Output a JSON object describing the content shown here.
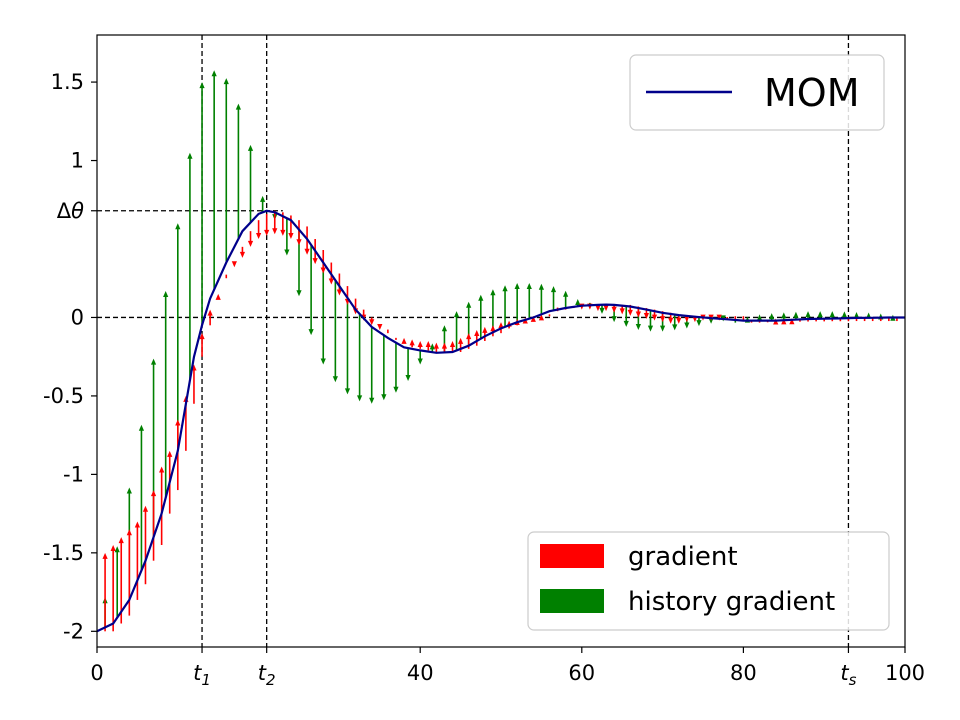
{
  "chart_data": {
    "type": "line",
    "title": "",
    "xlabel": "",
    "ylabel": "",
    "xlim": [
      0,
      100
    ],
    "ylim": [
      -2.1,
      1.8
    ],
    "x_ticks": [
      {
        "value": 0,
        "label": "0"
      },
      {
        "value": 13,
        "label": "t",
        "sub": "1"
      },
      {
        "value": 21,
        "label": "t",
        "sub": "2"
      },
      {
        "value": 40,
        "label": "40"
      },
      {
        "value": 60,
        "label": "60"
      },
      {
        "value": 80,
        "label": "80"
      },
      {
        "value": 93,
        "label": "t",
        "sub": "s"
      },
      {
        "value": 100,
        "label": "100"
      }
    ],
    "y_ticks": [
      {
        "value": -2,
        "label": "-2"
      },
      {
        "value": -1.5,
        "label": "-1.5"
      },
      {
        "value": -1,
        "label": "-1"
      },
      {
        "value": -0.5,
        "label": "-0.5"
      },
      {
        "value": 0,
        "label": "0"
      },
      {
        "value": 0.68,
        "label": "Δθ",
        "italic_part": "θ"
      },
      {
        "value": 1,
        "label": "1"
      },
      {
        "value": 1.5,
        "label": "1.5"
      }
    ],
    "reference_lines": {
      "vertical": [
        13,
        21,
        93
      ],
      "horizontal": [
        {
          "y": 0,
          "x_from": 0,
          "x_to": 100
        },
        {
          "y": 0.68,
          "x_from": 0,
          "x_to": 23
        }
      ]
    },
    "series": [
      {
        "name": "MOM",
        "color": "#00008b",
        "x": [
          0,
          2,
          4,
          6,
          8,
          10,
          12,
          13,
          14,
          16,
          18,
          20,
          21,
          22,
          24,
          26,
          28,
          30,
          32,
          34,
          36,
          38,
          40,
          42,
          44,
          46,
          48,
          50,
          52,
          54,
          56,
          58,
          60,
          62,
          63,
          64,
          66,
          68,
          70,
          72,
          74,
          76,
          78,
          80,
          82,
          84,
          86,
          88,
          90,
          92,
          94,
          96,
          98,
          100
        ],
        "y": [
          -2.0,
          -1.95,
          -1.8,
          -1.55,
          -1.25,
          -0.85,
          -0.25,
          -0.05,
          0.12,
          0.35,
          0.55,
          0.66,
          0.68,
          0.67,
          0.62,
          0.5,
          0.35,
          0.2,
          0.05,
          -0.06,
          -0.13,
          -0.19,
          -0.21,
          -0.225,
          -0.22,
          -0.18,
          -0.12,
          -0.07,
          -0.03,
          0.0,
          0.04,
          0.06,
          0.075,
          0.08,
          0.082,
          0.08,
          0.07,
          0.05,
          0.03,
          0.015,
          0.005,
          -0.005,
          -0.012,
          -0.02,
          -0.02,
          -0.02,
          -0.015,
          -0.01,
          -0.008,
          -0.006,
          -0.003,
          -0.002,
          0.0,
          0.0
        ]
      },
      {
        "name": "history gradient",
        "color": "#008000",
        "x": [
          0,
          3,
          6,
          10,
          13,
          15,
          17,
          19,
          20,
          21,
          22,
          24,
          26,
          28,
          30,
          32,
          34,
          36,
          38,
          40,
          42,
          44,
          46,
          48,
          50,
          52,
          54,
          56,
          58,
          60,
          62,
          64,
          66,
          68,
          70,
          72,
          74,
          76,
          78,
          80,
          82,
          84,
          86,
          88,
          90,
          92,
          94,
          96,
          98,
          100
        ],
        "y": [
          -2.0,
          -1.35,
          -0.55,
          0.6,
          1.5,
          1.6,
          1.45,
          1.1,
          0.85,
          0.7,
          0.62,
          0.32,
          -0.05,
          -0.3,
          -0.45,
          -0.53,
          -0.55,
          -0.52,
          -0.44,
          -0.3,
          -0.12,
          0.02,
          0.1,
          0.16,
          0.2,
          0.22,
          0.22,
          0.21,
          0.17,
          0.1,
          0.04,
          -0.03,
          -0.07,
          -0.09,
          -0.09,
          -0.08,
          -0.06,
          -0.04,
          -0.02,
          0.0,
          0.02,
          0.03,
          0.035,
          0.04,
          0.04,
          0.04,
          0.035,
          0.03,
          0.02,
          0.01
        ]
      },
      {
        "name": "gradient",
        "color": "#ff0000",
        "x": [
          0,
          3,
          6,
          8,
          10,
          12,
          13,
          14,
          16,
          18,
          20,
          21,
          22,
          24,
          26,
          28,
          30,
          32,
          34,
          36,
          38,
          40,
          42,
          44,
          46,
          48,
          50,
          52,
          54,
          56,
          58,
          60,
          62,
          64,
          66,
          68,
          70,
          72,
          74,
          76,
          78,
          80,
          82,
          84,
          86,
          88,
          90,
          92,
          94,
          96,
          98,
          100
        ],
        "y": [
          -1.5,
          -1.35,
          -1.15,
          -1.0,
          -0.6,
          -0.2,
          -0.05,
          0.08,
          0.3,
          0.45,
          0.52,
          0.54,
          0.53,
          0.48,
          0.4,
          0.28,
          0.15,
          0.03,
          -0.05,
          -0.1,
          -0.13,
          -0.15,
          -0.16,
          -0.15,
          -0.1,
          -0.05,
          -0.02,
          0.0,
          0.02,
          0.04,
          0.05,
          0.05,
          0.04,
          0.02,
          0.0,
          -0.02,
          -0.03,
          -0.04,
          -0.03,
          -0.02,
          -0.02,
          -0.02,
          -0.015,
          -0.01,
          -0.008,
          -0.006,
          -0.004,
          -0.003,
          -0.002,
          -0.001,
          -0.001,
          0.0
        ]
      }
    ],
    "arrows": {
      "gradient": {
        "color": "#ff0000",
        "x": [
          1,
          2,
          3,
          4,
          5,
          6,
          7,
          8,
          9,
          10,
          11,
          12,
          13,
          14,
          15,
          16,
          17,
          18,
          19,
          20,
          21,
          22,
          23,
          24,
          25,
          26,
          27,
          28,
          29,
          30,
          31,
          32,
          33,
          34,
          35,
          36,
          37,
          38,
          39,
          40,
          41,
          42,
          43,
          44,
          45,
          46,
          47,
          48,
          49,
          50,
          51,
          52,
          53,
          54,
          55,
          56,
          57,
          58,
          59,
          60,
          61,
          62,
          63,
          64,
          65,
          66,
          67,
          68,
          69,
          70,
          71,
          72,
          73,
          74,
          75,
          76,
          77,
          78,
          79,
          80,
          81,
          82,
          83,
          84,
          85,
          86,
          87,
          88,
          89,
          90,
          91,
          92,
          93,
          94,
          95,
          96,
          97,
          98,
          99
        ],
        "y_from": [
          -2.0,
          -2.0,
          -1.95,
          -1.9,
          -1.8,
          -1.7,
          -1.55,
          -1.45,
          -1.25,
          -1.1,
          -0.85,
          -0.55,
          -0.25,
          -0.05,
          0.12,
          0.25,
          0.35,
          0.45,
          0.55,
          0.62,
          0.66,
          0.68,
          0.67,
          0.65,
          0.62,
          0.58,
          0.5,
          0.43,
          0.35,
          0.28,
          0.2,
          0.12,
          0.05,
          0.0,
          -0.06,
          -0.1,
          -0.13,
          -0.16,
          -0.19,
          -0.2,
          -0.21,
          -0.22,
          -0.225,
          -0.22,
          -0.22,
          -0.2,
          -0.18,
          -0.15,
          -0.12,
          -0.1,
          -0.07,
          -0.05,
          -0.03,
          -0.01,
          0.0,
          0.02,
          0.04,
          0.05,
          0.06,
          0.07,
          0.075,
          0.08,
          0.08,
          0.082,
          0.08,
          0.08,
          0.07,
          0.06,
          0.05,
          0.04,
          0.03,
          0.02,
          0.015,
          0.01,
          0.005,
          0.0,
          -0.005,
          -0.01,
          -0.012,
          -0.015,
          -0.02,
          -0.02,
          -0.02,
          -0.02,
          -0.02,
          -0.02,
          -0.015,
          -0.015,
          -0.01,
          -0.01,
          -0.008,
          -0.007,
          -0.006,
          -0.005,
          -0.003,
          -0.003,
          -0.002,
          -0.001,
          -0.001
        ],
        "y_to": [
          -1.5,
          -1.45,
          -1.4,
          -1.35,
          -1.3,
          -1.2,
          -1.1,
          -0.95,
          -0.85,
          -0.65,
          -0.5,
          -0.3,
          -0.1,
          0.05,
          0.15,
          0.25,
          0.32,
          0.38,
          0.45,
          0.5,
          0.52,
          0.53,
          0.52,
          0.5,
          0.46,
          0.4,
          0.34,
          0.28,
          0.21,
          0.14,
          0.08,
          0.02,
          -0.02,
          -0.05,
          -0.08,
          -0.1,
          -0.12,
          -0.13,
          -0.14,
          -0.15,
          -0.15,
          -0.16,
          -0.16,
          -0.15,
          -0.13,
          -0.1,
          -0.08,
          -0.06,
          -0.05,
          -0.03,
          -0.02,
          -0.01,
          0.0,
          0.01,
          0.02,
          0.03,
          0.04,
          0.04,
          0.05,
          0.05,
          0.05,
          0.04,
          0.04,
          0.03,
          0.02,
          0.01,
          0.0,
          -0.01,
          -0.02,
          -0.03,
          -0.04,
          -0.04,
          -0.03,
          -0.03,
          -0.02,
          -0.02,
          -0.02,
          -0.02,
          -0.015,
          -0.015,
          -0.01,
          -0.01,
          -0.008,
          -0.007,
          -0.006,
          -0.005,
          -0.004,
          -0.003,
          -0.002,
          -0.002,
          -0.001,
          -0.001,
          -0.001,
          0.0,
          0.0,
          0.0,
          0.0,
          0.0,
          0.0
        ]
      },
      "history_gradient": {
        "color": "#008000"
      }
    },
    "legends": [
      {
        "position": "upper right",
        "entries": [
          {
            "label": "MOM",
            "style": "line",
            "color": "#00008b"
          }
        ]
      },
      {
        "position": "lower right",
        "entries": [
          {
            "label": "gradient",
            "style": "patch",
            "color": "#ff0000"
          },
          {
            "label": "history gradient",
            "style": "patch",
            "color": "#008000"
          }
        ]
      }
    ],
    "grid": false
  }
}
